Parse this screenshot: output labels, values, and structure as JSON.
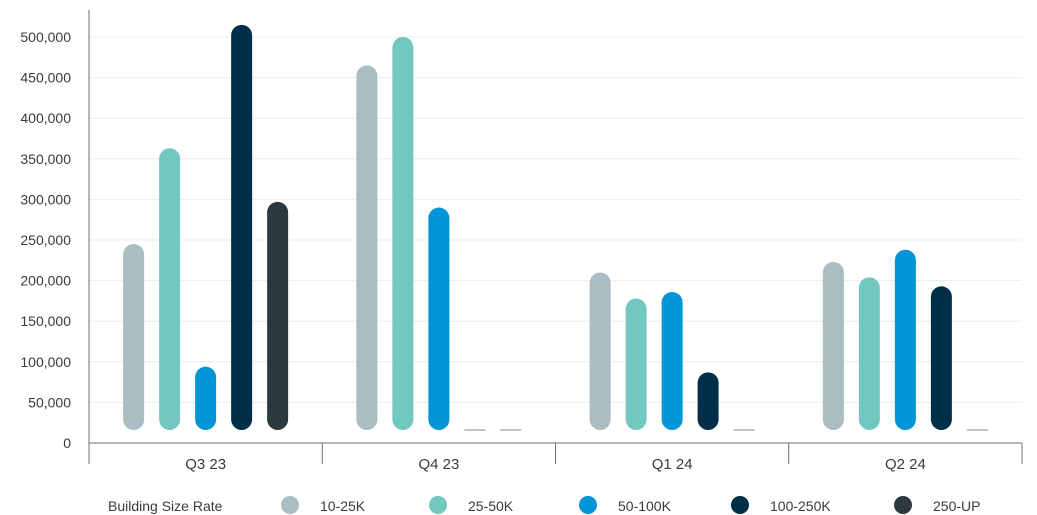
{
  "chart_data": {
    "type": "bar",
    "categories": [
      "Q3 23",
      "Q4 23",
      "Q1 24",
      "Q2 24"
    ],
    "series": [
      {
        "name": "10-25K",
        "color": "#a9bdc3",
        "values": [
          245000,
          465000,
          210000,
          223000
        ]
      },
      {
        "name": "25-50K",
        "color": "#72c8c0",
        "values": [
          363000,
          500000,
          178000,
          204000
        ]
      },
      {
        "name": "50-100K",
        "color": "#0096d6",
        "values": [
          94000,
          290000,
          186000,
          238000
        ]
      },
      {
        "name": "100-250K",
        "color": "#003049",
        "values": [
          515000,
          0,
          87000,
          193000
        ]
      },
      {
        "name": "250-UP",
        "color": "#2c3a40",
        "values": [
          297000,
          0,
          0,
          0
        ]
      }
    ],
    "yticks": [
      "0",
      "50,000",
      "100,000",
      "150,000",
      "200,000",
      "250,000",
      "300,000",
      "350,000",
      "400,000",
      "450,000",
      "500,000"
    ],
    "ylim": [
      0,
      500000
    ],
    "grid": true,
    "legend": {
      "title": "Building Size Rate",
      "placement": "bottom"
    }
  }
}
